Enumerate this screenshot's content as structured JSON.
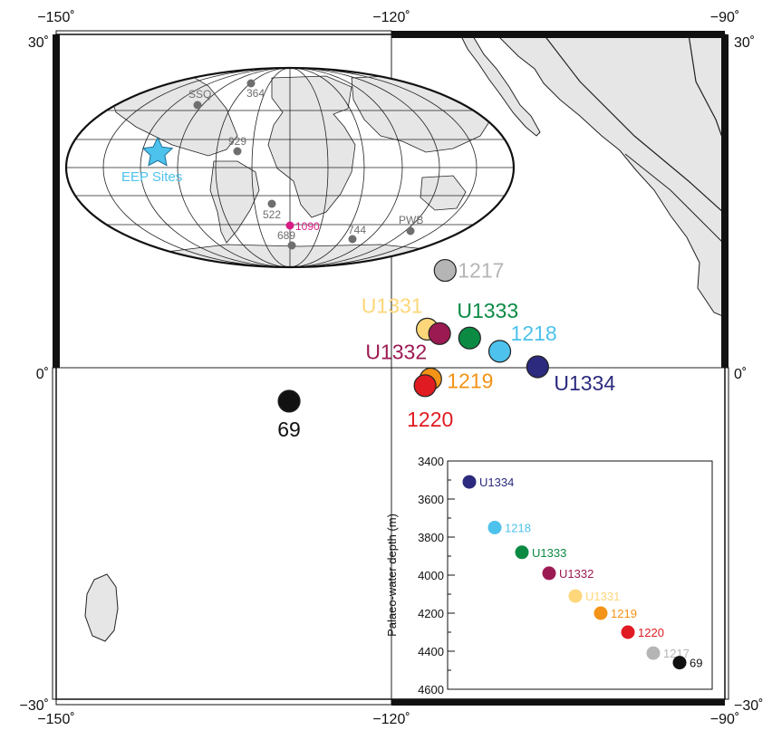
{
  "map": {
    "lon_ticks": [
      "−150˚",
      "−120˚",
      "−90˚"
    ],
    "lat_ticks": [
      "30˚",
      "0˚",
      "−30˚"
    ],
    "lon_range": [
      -150,
      -90
    ],
    "lat_range": [
      -30,
      30
    ],
    "land_color": "#e6e6e6",
    "sites": [
      {
        "name": "U1331",
        "lon": -116.7,
        "lat": 3.4,
        "color": "#fdd77a",
        "label_color": "#fdd77a"
      },
      {
        "name": "U1332",
        "lon": -115.6,
        "lat": 3.0,
        "color": "#9c1a52",
        "label_color": "#9c1a52"
      },
      {
        "name": "U1333",
        "lon": -112.9,
        "lat": 2.6,
        "color": "#0b8a44",
        "label_color": "#0b8a44"
      },
      {
        "name": "1218",
        "lon": -110.2,
        "lat": 1.4,
        "color": "#4dc2ec",
        "label_color": "#4dc2ec"
      },
      {
        "name": "U1334",
        "lon": -106.8,
        "lat": 0.0,
        "color": "#2b2a7e",
        "label_color": "#2b2a7e"
      },
      {
        "name": "1217",
        "lon": -115.1,
        "lat": 8.7,
        "color": "#b5b5b5",
        "label_color": "#b5b5b5"
      },
      {
        "name": "1219",
        "lon": -116.4,
        "lat": -1.1,
        "color": "#f39317",
        "label_color": "#f39317"
      },
      {
        "name": "1220",
        "lon": -116.9,
        "lat": -1.7,
        "color": "#e01b22",
        "label_color": "#e01b22"
      },
      {
        "name": "69",
        "lon": -129.1,
        "lat": -3.1,
        "color": "#111111",
        "label_color": "#111111"
      }
    ]
  },
  "globe": {
    "sites_label": "EEP Sites",
    "sites_label_color": "#4dc2ec",
    "points": [
      {
        "name": "SSQ",
        "color": "#6e6e6e"
      },
      {
        "name": "364",
        "color": "#6e6e6e"
      },
      {
        "name": "929",
        "color": "#6e6e6e"
      },
      {
        "name": "522",
        "color": "#6e6e6e"
      },
      {
        "name": "1090",
        "color": "#d81b85"
      },
      {
        "name": "689",
        "color": "#6e6e6e"
      },
      {
        "name": "744",
        "color": "#6e6e6e"
      },
      {
        "name": "PWB",
        "color": "#6e6e6e"
      }
    ]
  },
  "chart_data": {
    "type": "scatter",
    "ylabel": "Palaeo-water depth (m)",
    "ylim": [
      4600,
      3400
    ],
    "y_ticks": [
      3400,
      3600,
      3800,
      4000,
      4200,
      4400,
      4600
    ],
    "points": [
      {
        "name": "U1334",
        "y": 3510,
        "color": "#2b2a7e"
      },
      {
        "name": "1218",
        "y": 3750,
        "color": "#4dc2ec"
      },
      {
        "name": "U1333",
        "y": 3880,
        "color": "#0b8a44"
      },
      {
        "name": "U1332",
        "y": 3990,
        "color": "#9c1a52"
      },
      {
        "name": "U1331",
        "y": 4110,
        "color": "#fdd77a"
      },
      {
        "name": "1219",
        "y": 4200,
        "color": "#f39317"
      },
      {
        "name": "1220",
        "y": 4300,
        "color": "#e01b22"
      },
      {
        "name": "1217",
        "y": 4410,
        "color": "#b5b5b5"
      },
      {
        "name": "69",
        "y": 4460,
        "color": "#111111"
      }
    ]
  }
}
